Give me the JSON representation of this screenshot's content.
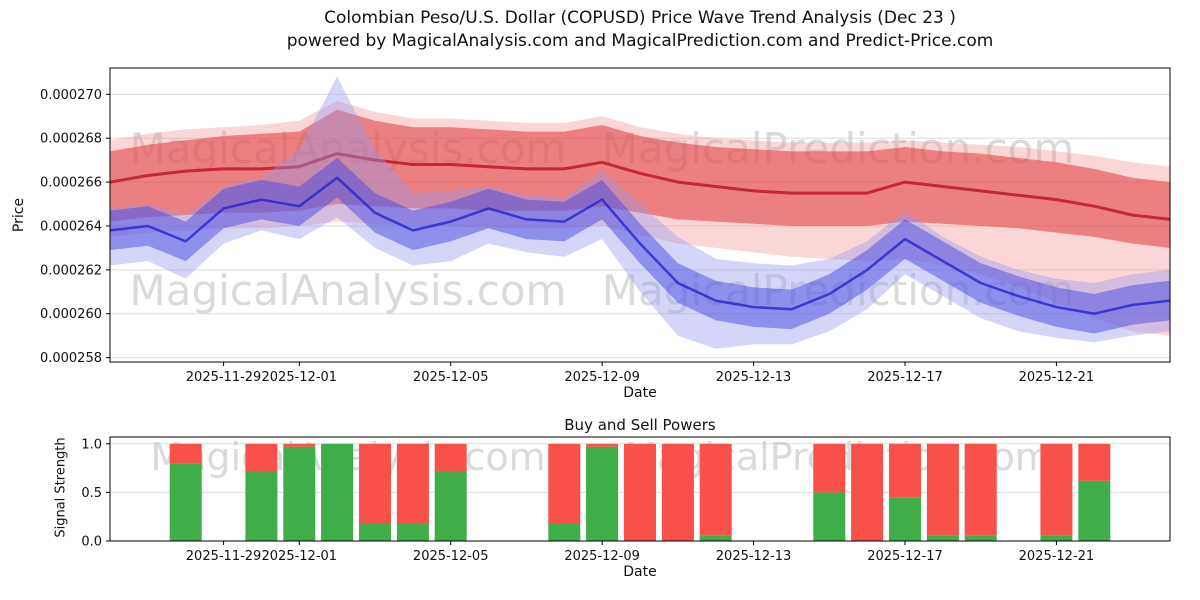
{
  "page": {
    "title_line1": "Colombian Peso/U.S. Dollar (COPUSD) Price Wave Trend Analysis (Dec 23 )",
    "title_line2": "powered by MagicalAnalysis.com and MagicalPrediction.com and Predict-Price.com",
    "background": "#ffffff"
  },
  "watermarks": {
    "left_text": "MagicalAnalysis.com",
    "right_text": "MagicalPrediction.com",
    "color": "#c2c2c2"
  },
  "colors": {
    "grid": "#dcdcdc",
    "spine": "#000000",
    "bar_green": "#3fae49",
    "bar_red": "#f8514a"
  },
  "chart_data": [
    {
      "type": "area",
      "title": "",
      "xlabel": "Date",
      "ylabel": "Price",
      "grid": "horizontal",
      "y_unit": "USD",
      "y_values_scale": 1e-06,
      "x_domain": [
        "2025-11-26",
        "2025-12-24"
      ],
      "y_domain_micro": [
        257.8,
        271.2
      ],
      "y_ticks": [
        {
          "value": 258,
          "label": "0.000258"
        },
        {
          "value": 260,
          "label": "0.000260"
        },
        {
          "value": 262,
          "label": "0.000262"
        },
        {
          "value": 264,
          "label": "0.000264"
        },
        {
          "value": 266,
          "label": "0.000266"
        },
        {
          "value": 268,
          "label": "0.000268"
        },
        {
          "value": 270,
          "label": "0.000270"
        }
      ],
      "x_ticks": [
        {
          "date": "2025-11-29",
          "label": "2025-11-29"
        },
        {
          "date": "2025-12-01",
          "label": "2025-12-01"
        },
        {
          "date": "2025-12-05",
          "label": "2025-12-05"
        },
        {
          "date": "2025-12-09",
          "label": "2025-12-09"
        },
        {
          "date": "2025-12-13",
          "label": "2025-12-13"
        },
        {
          "date": "2025-12-17",
          "label": "2025-12-17"
        },
        {
          "date": "2025-12-21",
          "label": "2025-12-21"
        }
      ],
      "dates": [
        "2025-11-26",
        "2025-11-27",
        "2025-11-28",
        "2025-11-29",
        "2025-11-30",
        "2025-12-01",
        "2025-12-02",
        "2025-12-03",
        "2025-12-04",
        "2025-12-05",
        "2025-12-06",
        "2025-12-07",
        "2025-12-08",
        "2025-12-09",
        "2025-12-10",
        "2025-12-11",
        "2025-12-12",
        "2025-12-13",
        "2025-12-14",
        "2025-12-15",
        "2025-12-16",
        "2025-12-17",
        "2025-12-18",
        "2025-12-19",
        "2025-12-20",
        "2025-12-21",
        "2025-12-22",
        "2025-12-23",
        "2025-12-24"
      ],
      "series": [
        {
          "name": "bearish-outer-band",
          "kind": "band",
          "color": "#f08a8a",
          "opacity": 0.35,
          "upper": [
            267.9,
            268.2,
            268.4,
            268.5,
            268.6,
            268.8,
            269.7,
            269.2,
            268.9,
            268.9,
            268.8,
            268.7,
            268.7,
            269.0,
            268.5,
            268.2,
            268.0,
            267.9,
            267.8,
            267.8,
            267.8,
            267.9,
            267.8,
            267.7,
            267.6,
            267.4,
            267.2,
            266.9,
            266.7
          ],
          "lower": [
            263.5,
            263.7,
            263.8,
            263.9,
            263.9,
            264.0,
            264.2,
            264.1,
            264.0,
            264.0,
            263.9,
            263.9,
            263.9,
            264.0,
            263.6,
            263.2,
            263.0,
            262.8,
            262.6,
            262.5,
            262.4,
            262.5,
            262.2,
            261.8,
            261.2,
            260.5,
            259.8,
            259.2,
            259.0
          ]
        },
        {
          "name": "bearish-main-band",
          "kind": "band",
          "color": "#e03a3a",
          "opacity": 0.55,
          "upper": [
            267.4,
            267.7,
            267.9,
            268.1,
            268.2,
            268.3,
            269.3,
            268.8,
            268.5,
            268.5,
            268.4,
            268.3,
            268.3,
            268.6,
            268.1,
            267.8,
            267.6,
            267.5,
            267.4,
            267.4,
            267.4,
            267.6,
            267.4,
            267.3,
            267.1,
            266.9,
            266.6,
            266.2,
            266.0
          ],
          "lower": [
            264.2,
            264.4,
            264.5,
            264.6,
            264.6,
            264.7,
            265.0,
            264.9,
            264.8,
            264.8,
            264.7,
            264.7,
            264.7,
            264.9,
            264.6,
            264.3,
            264.2,
            264.1,
            264.0,
            264.0,
            264.0,
            264.2,
            264.1,
            264.0,
            263.9,
            263.7,
            263.5,
            263.2,
            263.0
          ]
        },
        {
          "name": "bearish-core-line",
          "kind": "line",
          "color": "#bb1a28",
          "opacity": 0.85,
          "width": 3,
          "values": [
            266.0,
            266.3,
            266.5,
            266.6,
            266.6,
            266.7,
            267.3,
            267.0,
            266.8,
            266.8,
            266.7,
            266.6,
            266.6,
            266.9,
            266.4,
            266.0,
            265.8,
            265.6,
            265.5,
            265.5,
            265.5,
            266.0,
            265.8,
            265.6,
            265.4,
            265.2,
            264.9,
            264.5,
            264.3
          ]
        },
        {
          "name": "bullish-outer-band",
          "kind": "band",
          "color": "#9595f0",
          "opacity": 0.4,
          "upper": [
            264.8,
            265.0,
            264.5,
            265.8,
            266.2,
            267.5,
            270.8,
            267.5,
            265.5,
            265.6,
            265.8,
            265.4,
            265.3,
            266.5,
            265.0,
            263.5,
            262.5,
            262.3,
            262.2,
            262.5,
            263.3,
            264.7,
            263.5,
            262.6,
            262.0,
            261.6,
            261.4,
            261.8,
            262.0
          ],
          "lower": [
            262.2,
            262.4,
            261.6,
            263.2,
            263.8,
            263.4,
            264.4,
            263.0,
            262.2,
            262.4,
            263.2,
            262.8,
            262.6,
            263.4,
            261.0,
            259.0,
            258.4,
            258.6,
            258.6,
            259.2,
            260.2,
            261.8,
            260.8,
            259.8,
            259.2,
            258.9,
            258.7,
            259.0,
            259.2
          ]
        },
        {
          "name": "bullish-main-band",
          "kind": "band",
          "color": "#4a4ae0",
          "opacity": 0.5,
          "upper": [
            264.7,
            264.9,
            264.2,
            265.7,
            266.1,
            265.8,
            267.1,
            265.5,
            264.7,
            265.1,
            265.7,
            265.2,
            265.1,
            266.1,
            264.1,
            262.3,
            261.5,
            261.2,
            261.1,
            261.8,
            262.9,
            264.3,
            263.3,
            262.3,
            261.7,
            261.2,
            260.9,
            261.3,
            261.5
          ],
          "lower": [
            262.9,
            263.1,
            262.4,
            263.9,
            264.3,
            264.0,
            265.3,
            263.7,
            262.9,
            263.3,
            263.9,
            263.4,
            263.3,
            264.3,
            262.3,
            260.5,
            259.7,
            259.4,
            259.3,
            260.0,
            261.1,
            262.5,
            261.5,
            260.5,
            259.9,
            259.4,
            259.1,
            259.5,
            259.7
          ]
        },
        {
          "name": "bullish-core-line",
          "kind": "line",
          "color": "#2424c8",
          "opacity": 0.8,
          "width": 2.5,
          "values": [
            263.8,
            264.0,
            263.3,
            264.8,
            265.2,
            264.9,
            266.2,
            264.6,
            263.8,
            264.2,
            264.8,
            264.3,
            264.2,
            265.2,
            263.2,
            261.4,
            260.6,
            260.3,
            260.2,
            260.9,
            262.0,
            263.4,
            262.4,
            261.4,
            260.8,
            260.3,
            260.0,
            260.4,
            260.6
          ]
        }
      ]
    },
    {
      "type": "bar",
      "title": "Buy and Sell Powers",
      "xlabel": "Date",
      "ylabel": "Signal Strength",
      "stacked": true,
      "y_domain": [
        0,
        1.07
      ],
      "y_ticks": [
        {
          "value": 0,
          "label": "0.0"
        },
        {
          "value": 0.5,
          "label": "0.5"
        },
        {
          "value": 1,
          "label": "1.0"
        }
      ],
      "x_ticks": [
        {
          "date": "2025-11-29",
          "label": "2025-11-29"
        },
        {
          "date": "2025-12-01",
          "label": "2025-12-01"
        },
        {
          "date": "2025-12-05",
          "label": "2025-12-05"
        },
        {
          "date": "2025-12-09",
          "label": "2025-12-09"
        },
        {
          "date": "2025-12-13",
          "label": "2025-12-13"
        },
        {
          "date": "2025-12-17",
          "label": "2025-12-17"
        },
        {
          "date": "2025-12-21",
          "label": "2025-12-21"
        }
      ],
      "bars": [
        {
          "date": "2025-11-28",
          "green": 0.8,
          "red": 0.2
        },
        {
          "date": "2025-11-30",
          "green": 0.72,
          "red": 0.28
        },
        {
          "date": "2025-12-01",
          "green": 0.97,
          "red": 0.03
        },
        {
          "date": "2025-12-02",
          "green": 1.0,
          "red": 0.0
        },
        {
          "date": "2025-12-03",
          "green": 0.18,
          "red": 0.82
        },
        {
          "date": "2025-12-04",
          "green": 0.18,
          "red": 0.82
        },
        {
          "date": "2025-12-05",
          "green": 0.72,
          "red": 0.28
        },
        {
          "date": "2025-12-08",
          "green": 0.18,
          "red": 0.82
        },
        {
          "date": "2025-12-09",
          "green": 0.97,
          "red": 0.03
        },
        {
          "date": "2025-12-10",
          "green": 0.0,
          "red": 1.0
        },
        {
          "date": "2025-12-11",
          "green": 0.0,
          "red": 1.0
        },
        {
          "date": "2025-12-12",
          "green": 0.06,
          "red": 0.94
        },
        {
          "date": "2025-12-15",
          "green": 0.5,
          "red": 0.5
        },
        {
          "date": "2025-12-16",
          "green": 0.0,
          "red": 1.0
        },
        {
          "date": "2025-12-17",
          "green": 0.45,
          "red": 0.55
        },
        {
          "date": "2025-12-18",
          "green": 0.06,
          "red": 0.94
        },
        {
          "date": "2025-12-19",
          "green": 0.06,
          "red": 0.94
        },
        {
          "date": "2025-12-21",
          "green": 0.06,
          "red": 0.94
        },
        {
          "date": "2025-12-22",
          "green": 0.62,
          "red": 0.38
        }
      ]
    }
  ]
}
